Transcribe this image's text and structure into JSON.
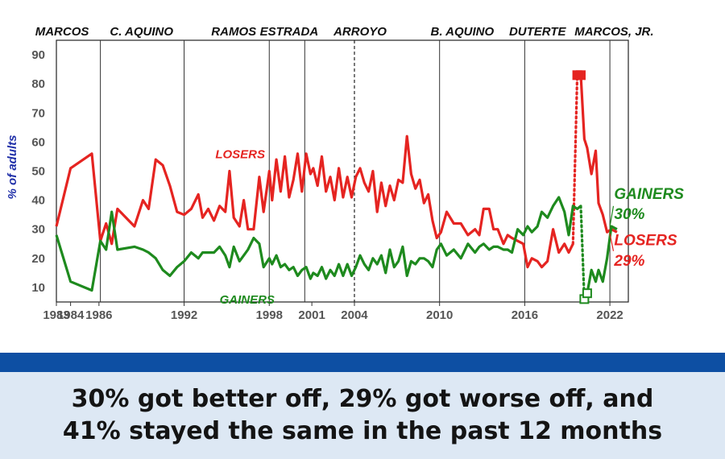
{
  "chart_data": {
    "type": "line",
    "ylabel": "% of adults",
    "ylim": [
      5,
      95
    ],
    "xlim": [
      1983,
      2023.3
    ],
    "yticks": [
      10,
      20,
      30,
      40,
      50,
      60,
      70,
      80,
      90
    ],
    "xticks": [
      1983,
      1984,
      1986,
      1992,
      1998,
      2001,
      2004,
      2010,
      2016,
      2022
    ],
    "grid": false,
    "administrations": [
      {
        "name": "MARCOS",
        "label_x": 1983.4
      },
      {
        "name": "C. AQUINO",
        "label_x": 1989.0,
        "start": 1986.1
      },
      {
        "name": "RAMOS",
        "label_x": 1995.5,
        "start": 1992.0
      },
      {
        "name": "ESTRADA",
        "label_x": 1999.4,
        "start": 1998.0
      },
      {
        "name": "ARROYO",
        "label_x": 2004.4,
        "start": 2000.5
      },
      {
        "name": "B. AQUINO",
        "label_x": 2011.6,
        "start": 2010.0
      },
      {
        "name": "DUTERTE",
        "label_x": 2016.9,
        "start": 2016.0
      },
      {
        "name": "MARCOS, JR.",
        "label_x": 2022.3,
        "start": 2022.0
      }
    ],
    "dashed_marker": 2004.0,
    "series": [
      {
        "name": "LOSERS",
        "color": "#e52421",
        "x": [
          1983.0,
          1984.0,
          1985.5,
          1986.1,
          1986.5,
          1986.9,
          1987.3,
          1988.5,
          1989.1,
          1989.5,
          1990.0,
          1990.5,
          1991.0,
          1991.5,
          1992.0,
          1992.5,
          1993.0,
          1993.3,
          1993.7,
          1994.1,
          1994.5,
          1994.9,
          1995.2,
          1995.5,
          1995.9,
          1996.2,
          1996.5,
          1996.9,
          1997.3,
          1997.6,
          1998.0,
          1998.2,
          1998.5,
          1998.8,
          1999.1,
          1999.4,
          1999.7,
          2000.0,
          2000.3,
          2000.6,
          2000.9,
          2001.1,
          2001.4,
          2001.7,
          2002.0,
          2002.3,
          2002.6,
          2002.9,
          2003.2,
          2003.5,
          2003.8,
          2004.1,
          2004.4,
          2004.7,
          2005.0,
          2005.3,
          2005.6,
          2005.9,
          2006.2,
          2006.5,
          2006.8,
          2007.1,
          2007.4,
          2007.7,
          2008.0,
          2008.3,
          2008.6,
          2008.9,
          2009.2,
          2009.5,
          2009.8,
          2010.1,
          2010.5,
          2011.0,
          2011.5,
          2012.0,
          2012.5,
          2012.8,
          2013.1,
          2013.5,
          2013.8,
          2014.1,
          2014.5,
          2014.8,
          2015.1,
          2015.5,
          2015.9,
          2016.2,
          2016.5,
          2016.9,
          2017.2,
          2017.6,
          2018.0,
          2018.4,
          2018.8,
          2019.1,
          2019.4,
          2019.7,
          2019.95,
          2020.2,
          2020.4,
          2020.7,
          2021.0,
          2021.2,
          2021.5,
          2021.8,
          2022.1,
          2022.5
        ],
        "values": [
          31,
          51,
          56,
          26,
          32,
          25,
          37,
          31,
          40,
          37,
          54,
          52,
          45,
          36,
          35,
          37,
          42,
          34,
          37,
          33,
          38,
          36,
          50,
          34,
          31,
          40,
          30,
          30,
          48,
          36,
          50,
          40,
          54,
          43,
          55,
          41,
          47,
          56,
          43,
          56,
          49,
          51,
          45,
          55,
          43,
          48,
          40,
          51,
          41,
          48,
          41,
          48,
          51,
          46,
          43,
          50,
          36,
          46,
          38,
          45,
          40,
          47,
          46,
          62,
          49,
          44,
          47,
          39,
          42,
          33,
          27,
          29,
          36,
          32,
          32,
          28,
          30,
          28,
          37,
          37,
          30,
          30,
          25,
          28,
          27,
          26,
          25,
          17,
          20,
          19,
          17,
          19,
          30,
          22,
          25,
          22,
          25,
          83,
          83,
          61,
          58,
          49,
          57,
          39,
          35,
          29,
          30,
          29
        ]
      },
      {
        "name": "GAINERS",
        "color": "#1e8a1e",
        "x": [
          1983.0,
          1984.0,
          1985.5,
          1986.1,
          1986.5,
          1986.9,
          1987.3,
          1988.5,
          1989.1,
          1989.5,
          1990.0,
          1990.5,
          1991.0,
          1991.5,
          1992.0,
          1992.5,
          1993.0,
          1993.3,
          1993.7,
          1994.1,
          1994.5,
          1994.9,
          1995.2,
          1995.5,
          1995.9,
          1996.2,
          1996.5,
          1996.9,
          1997.3,
          1997.6,
          1998.0,
          1998.2,
          1998.5,
          1998.8,
          1999.1,
          1999.4,
          1999.7,
          2000.0,
          2000.3,
          2000.6,
          2000.9,
          2001.1,
          2001.4,
          2001.7,
          2002.0,
          2002.3,
          2002.6,
          2002.9,
          2003.2,
          2003.5,
          2003.8,
          2004.1,
          2004.4,
          2004.7,
          2005.0,
          2005.3,
          2005.6,
          2005.9,
          2006.2,
          2006.5,
          2006.8,
          2007.1,
          2007.4,
          2007.7,
          2008.0,
          2008.3,
          2008.6,
          2008.9,
          2009.2,
          2009.5,
          2009.8,
          2010.1,
          2010.5,
          2011.0,
          2011.5,
          2012.0,
          2012.5,
          2012.8,
          2013.1,
          2013.5,
          2013.8,
          2014.1,
          2014.5,
          2014.8,
          2015.1,
          2015.5,
          2015.9,
          2016.2,
          2016.5,
          2016.9,
          2017.2,
          2017.6,
          2018.0,
          2018.4,
          2018.8,
          2019.1,
          2019.4,
          2019.7,
          2019.95,
          2020.2,
          2020.4,
          2020.7,
          2021.0,
          2021.2,
          2021.5,
          2021.8,
          2022.1,
          2022.5
        ],
        "values": [
          28,
          12,
          9,
          26,
          23,
          36,
          23,
          24,
          23,
          22,
          20,
          16,
          14,
          17,
          19,
          22,
          20,
          22,
          22,
          22,
          24,
          21,
          17,
          24,
          19,
          21,
          23,
          27,
          25,
          17,
          20,
          18,
          21,
          17,
          18,
          16,
          17,
          14,
          16,
          17,
          13,
          15,
          14,
          17,
          13,
          16,
          14,
          18,
          14,
          18,
          14,
          17,
          21,
          18,
          16,
          20,
          18,
          21,
          15,
          23,
          17,
          19,
          24,
          14,
          19,
          18,
          20,
          20,
          19,
          17,
          23,
          25,
          21,
          23,
          20,
          25,
          22,
          24,
          25,
          23,
          24,
          24,
          23,
          23,
          22,
          30,
          28,
          31,
          29,
          31,
          36,
          34,
          38,
          41,
          36,
          28,
          38,
          37,
          38,
          6,
          8,
          16,
          12,
          16,
          12,
          20,
          31,
          30
        ]
      }
    ],
    "annotations": [
      {
        "text": "LOSERS",
        "x": 1994.2,
        "y": 54.5,
        "color": "#e52421"
      },
      {
        "text": "GAINERS",
        "x": 1994.5,
        "y": 4.5,
        "color": "#1e8a1e"
      },
      {
        "text": "GAINERS",
        "x": 2022.3,
        "y": 40.5,
        "color": "#1e8a1e"
      },
      {
        "text": "30%",
        "x": 2022.3,
        "y": 33.5,
        "color": "#1e8a1e"
      },
      {
        "text": "LOSERS",
        "x": 2022.3,
        "y": 24.5,
        "color": "#e52421"
      },
      {
        "text": "29%",
        "x": 2022.3,
        "y": 17.5,
        "color": "#e52421"
      }
    ]
  },
  "caption": {
    "line1": "30% got better off, 29% got worse off, and",
    "line2": "41% stayed the same in the past 12 months"
  },
  "colors": {
    "band": "#0d4fa3",
    "caption_bg": "#dde8f4",
    "losers": "#e52421",
    "gainers": "#1e8a1e"
  }
}
